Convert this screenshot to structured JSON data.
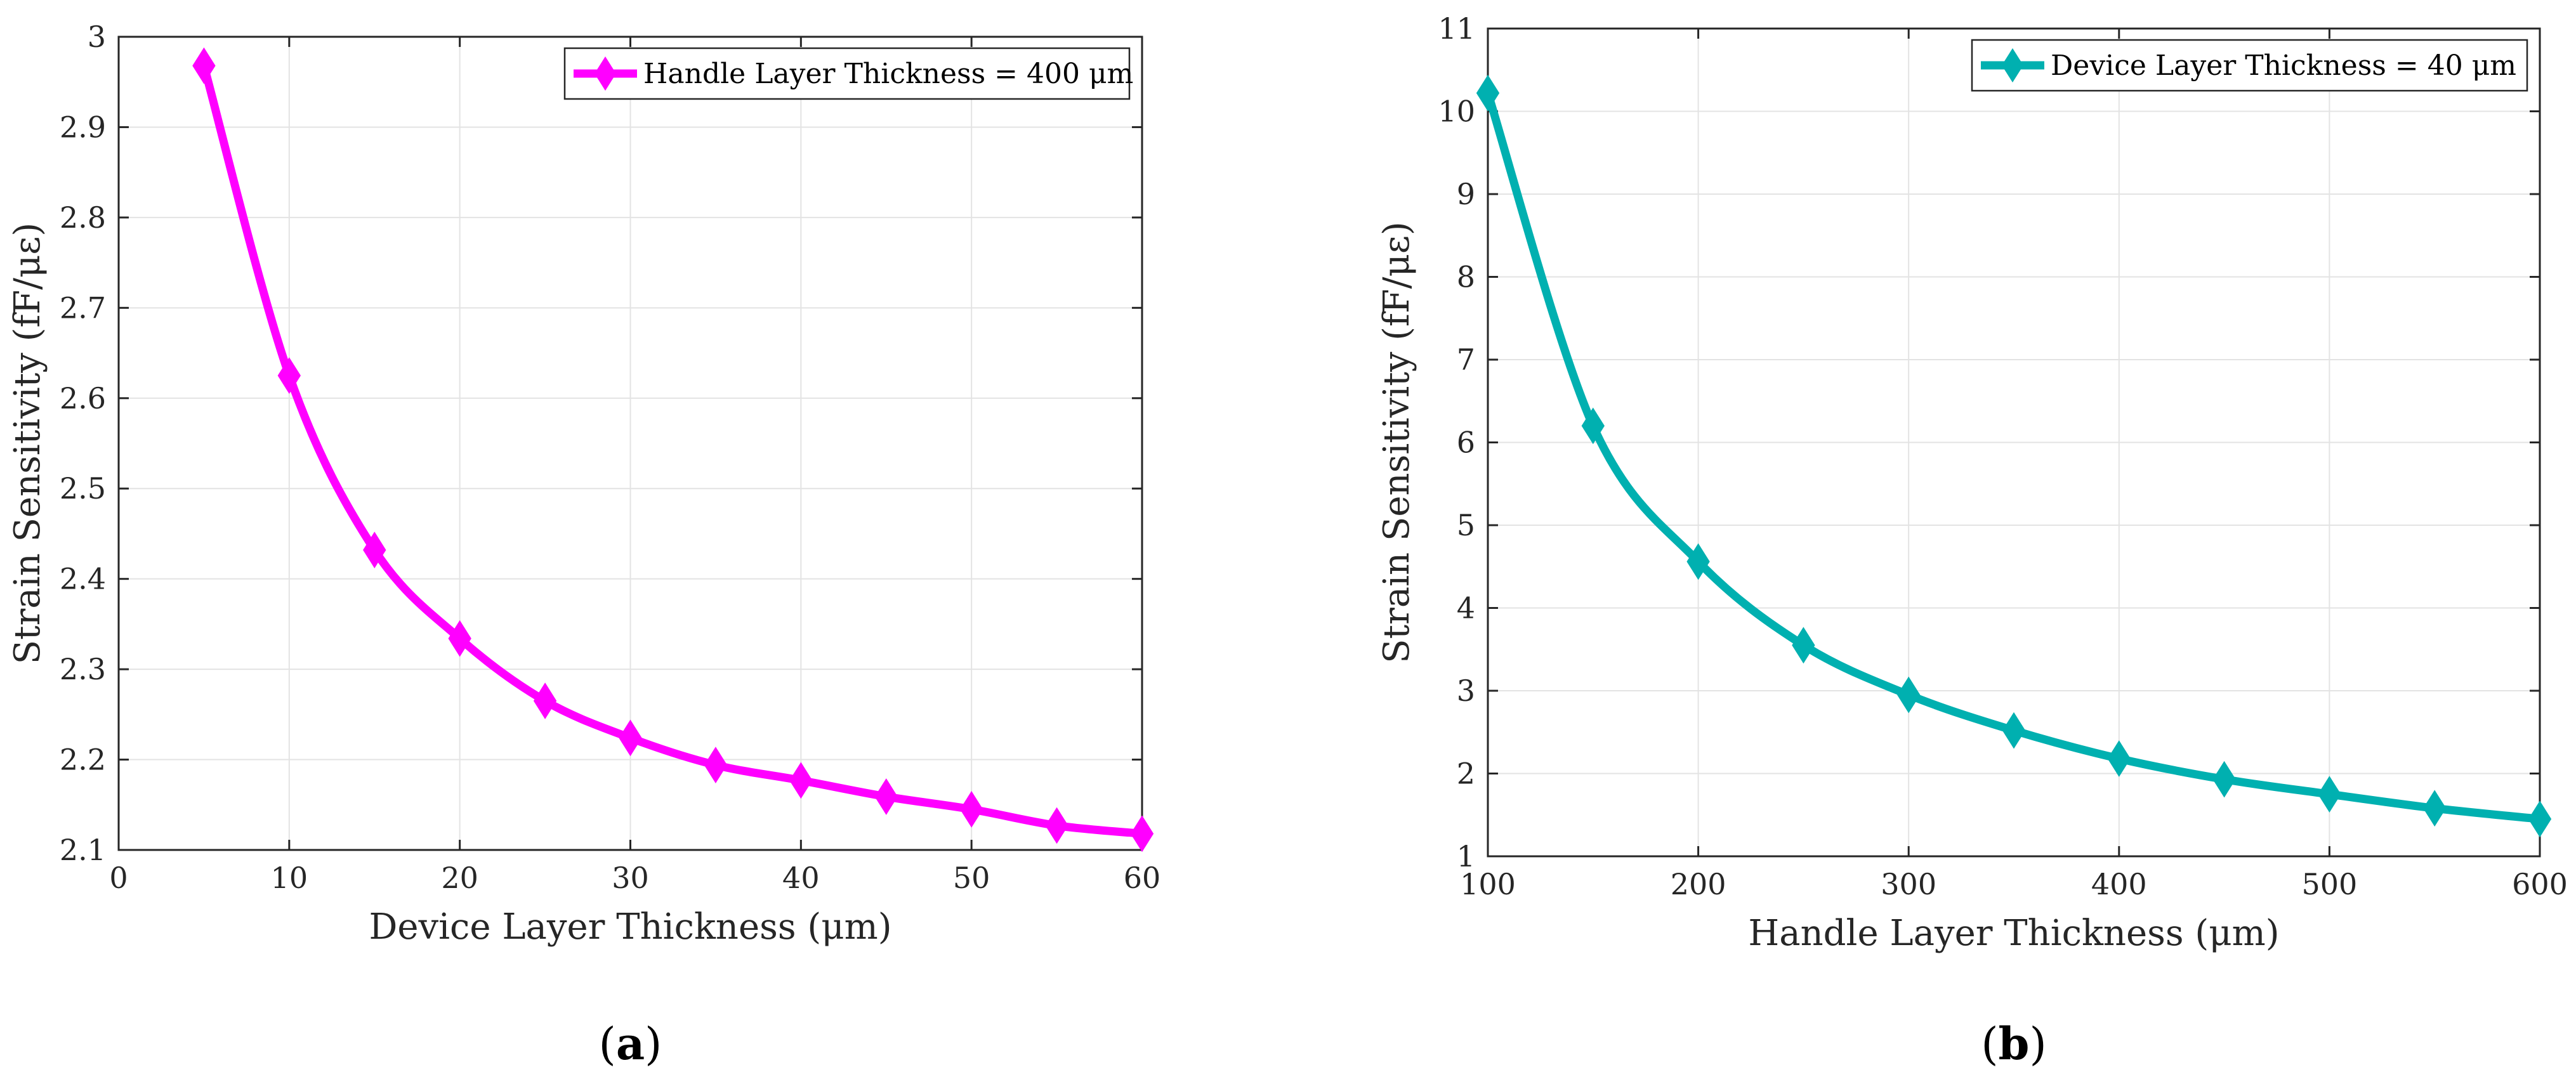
{
  "chart_data": [
    {
      "type": "line",
      "panel_label": "a",
      "xlabel": "Device Layer Thickness (μm)",
      "ylabel": "Strain Sensitivity (fF/με)",
      "xlim": [
        0,
        60
      ],
      "ylim": [
        2.1,
        3.0
      ],
      "xticks": [
        0,
        10,
        20,
        30,
        40,
        50,
        60
      ],
      "yticks": [
        2.1,
        2.2,
        2.3,
        2.4,
        2.5,
        2.6,
        2.7,
        2.8,
        2.9,
        3.0
      ],
      "ytick_labels": [
        "2.1",
        "2.2",
        "2.3",
        "2.4",
        "2.5",
        "2.6",
        "2.7",
        "2.8",
        "2.9",
        "3"
      ],
      "grid": true,
      "legend": "top-right",
      "series": [
        {
          "name": "Handle Layer Thickness = 400 μm",
          "color": "#ff00ff",
          "marker": "diamond",
          "x": [
            5,
            10,
            15,
            20,
            25,
            30,
            35,
            40,
            45,
            50,
            55,
            60
          ],
          "y": [
            2.968,
            2.625,
            2.432,
            2.334,
            2.265,
            2.224,
            2.194,
            2.177,
            2.159,
            2.145,
            2.127,
            2.118
          ]
        }
      ]
    },
    {
      "type": "line",
      "panel_label": "b",
      "xlabel": "Handle Layer Thickness (μm)",
      "ylabel": "Strain Sensitivity (fF/με)",
      "xlim": [
        100,
        600
      ],
      "ylim": [
        1,
        11
      ],
      "xticks": [
        100,
        200,
        300,
        400,
        500,
        600
      ],
      "yticks": [
        1,
        2,
        3,
        4,
        5,
        6,
        7,
        8,
        9,
        10,
        11
      ],
      "ytick_labels": [
        "1",
        "2",
        "3",
        "4",
        "5",
        "6",
        "7",
        "8",
        "9",
        "10",
        "11"
      ],
      "grid": true,
      "legend": "top-right",
      "series": [
        {
          "name": "Device Layer Thickness = 40 μm",
          "color": "#00b0b0",
          "marker": "diamond",
          "x": [
            100,
            150,
            200,
            250,
            300,
            350,
            400,
            450,
            500,
            550,
            600
          ],
          "y": [
            10.22,
            6.2,
            4.56,
            3.55,
            2.95,
            2.52,
            2.18,
            1.93,
            1.75,
            1.58,
            1.45
          ]
        }
      ]
    }
  ]
}
